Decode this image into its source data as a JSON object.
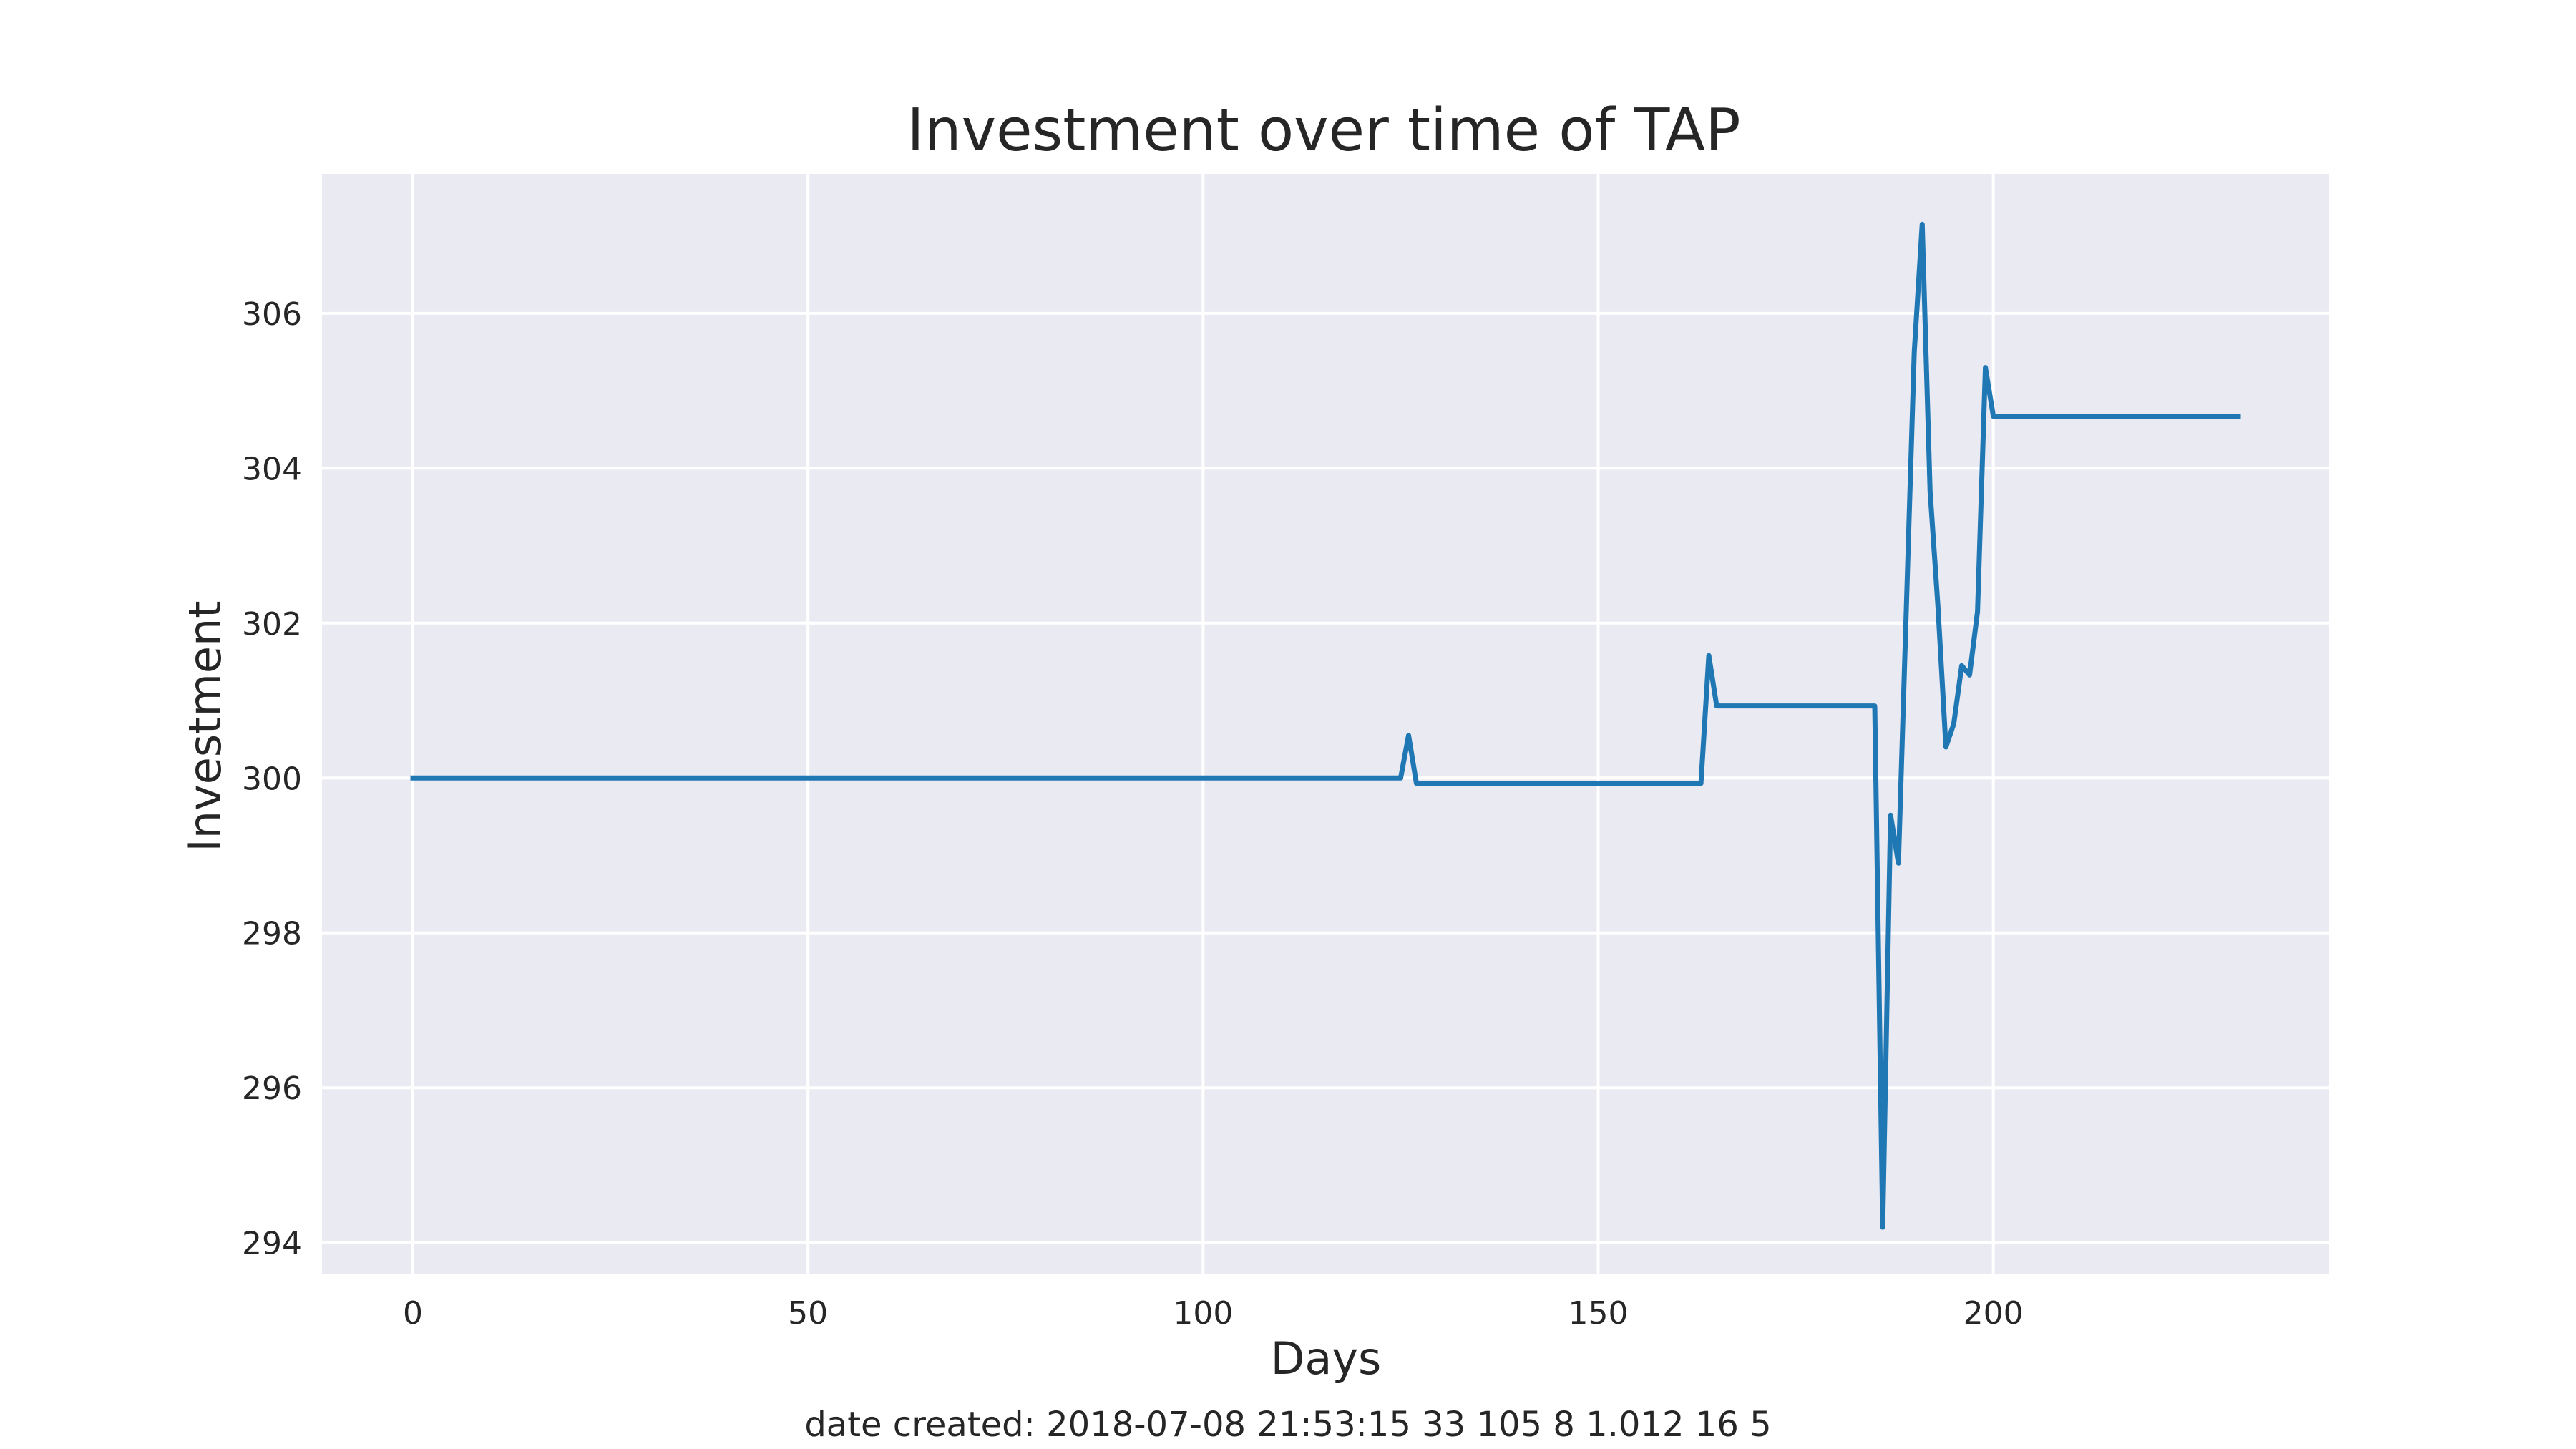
{
  "chart_data": {
    "type": "line",
    "title": "Investment over time of TAP",
    "xlabel": "Days",
    "ylabel": "Investment",
    "footer": "date created: 2018-07-08 21:53:15 33 105 8 1.012 16 5",
    "xlim": [
      -11.5,
      242.5
    ],
    "ylim": [
      293.6,
      307.8
    ],
    "xticks": [
      0,
      50,
      100,
      150,
      200
    ],
    "yticks": [
      294,
      296,
      298,
      300,
      302,
      304,
      306
    ],
    "grid": true,
    "legend": "none",
    "colors": {
      "background": "#eaeaf2",
      "grid": "#ffffff",
      "line": "#1f77b4"
    },
    "series": [
      {
        "points": [
          [
            0,
            300.0
          ],
          [
            125,
            300.0
          ],
          [
            126,
            300.55
          ],
          [
            127,
            299.93
          ],
          [
            163,
            299.93
          ],
          [
            164,
            301.58
          ],
          [
            165,
            300.93
          ],
          [
            185,
            300.93
          ],
          [
            186,
            294.2
          ],
          [
            187,
            299.52
          ],
          [
            188,
            298.9
          ],
          [
            190,
            305.5
          ],
          [
            191,
            307.15
          ],
          [
            192,
            303.7
          ],
          [
            193,
            302.2
          ],
          [
            194,
            300.4
          ],
          [
            195,
            300.7
          ],
          [
            196,
            301.45
          ],
          [
            197,
            301.33
          ],
          [
            198,
            302.15
          ],
          [
            199,
            305.3
          ],
          [
            200,
            304.67
          ],
          [
            231,
            304.67
          ]
        ]
      }
    ]
  }
}
